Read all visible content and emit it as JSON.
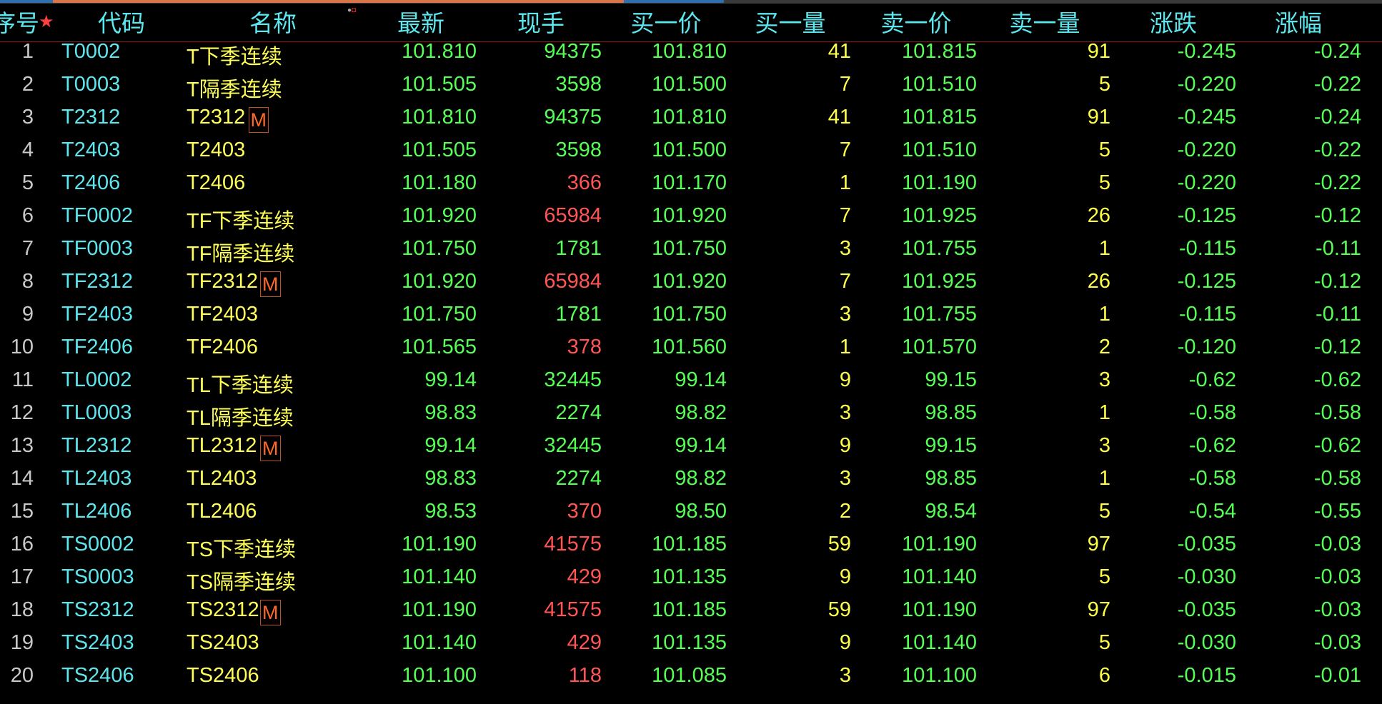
{
  "colors": {
    "header": "#5ce6ee",
    "code": "#5ce6ee",
    "name": "#ffff55",
    "up_down": "#55ff55",
    "volume_yellow": "#ffff44",
    "volume_red": "#ff5555",
    "badge": "#ff6a2a"
  },
  "header": {
    "index": "序号",
    "code": "代码",
    "name": "名称",
    "latest": "最新",
    "volume": "现手",
    "bid": "买一价",
    "bid_vol": "买一量",
    "ask": "卖一价",
    "ask_vol": "卖一量",
    "change": "涨跌",
    "pct": "涨幅"
  },
  "rows": [
    {
      "i": "1",
      "code": "T0002",
      "name": "T下季连续",
      "m": false,
      "latest": "101.810",
      "vol": "94375",
      "vc": "g",
      "bid": "101.810",
      "bv": "41",
      "ask": "101.815",
      "av": "91",
      "chg": "-0.245",
      "pct": "-0.24"
    },
    {
      "i": "2",
      "code": "T0003",
      "name": "T隔季连续",
      "m": false,
      "latest": "101.505",
      "vol": "3598",
      "vc": "g",
      "bid": "101.500",
      "bv": "7",
      "ask": "101.510",
      "av": "5",
      "chg": "-0.220",
      "pct": "-0.22"
    },
    {
      "i": "3",
      "code": "T2312",
      "name": "T2312",
      "m": true,
      "latest": "101.810",
      "vol": "94375",
      "vc": "g",
      "bid": "101.810",
      "bv": "41",
      "ask": "101.815",
      "av": "91",
      "chg": "-0.245",
      "pct": "-0.24"
    },
    {
      "i": "4",
      "code": "T2403",
      "name": "T2403",
      "m": false,
      "latest": "101.505",
      "vol": "3598",
      "vc": "g",
      "bid": "101.500",
      "bv": "7",
      "ask": "101.510",
      "av": "5",
      "chg": "-0.220",
      "pct": "-0.22"
    },
    {
      "i": "5",
      "code": "T2406",
      "name": "T2406",
      "m": false,
      "latest": "101.180",
      "vol": "366",
      "vc": "red",
      "bid": "101.170",
      "bv": "1",
      "ask": "101.190",
      "av": "5",
      "chg": "-0.220",
      "pct": "-0.22"
    },
    {
      "i": "6",
      "code": "TF0002",
      "name": "TF下季连续",
      "m": false,
      "latest": "101.920",
      "vol": "65984",
      "vc": "red",
      "bid": "101.920",
      "bv": "7",
      "ask": "101.925",
      "av": "26",
      "chg": "-0.125",
      "pct": "-0.12"
    },
    {
      "i": "7",
      "code": "TF0003",
      "name": "TF隔季连续",
      "m": false,
      "latest": "101.750",
      "vol": "1781",
      "vc": "g",
      "bid": "101.750",
      "bv": "3",
      "ask": "101.755",
      "av": "1",
      "chg": "-0.115",
      "pct": "-0.11"
    },
    {
      "i": "8",
      "code": "TF2312",
      "name": "TF2312",
      "m": true,
      "latest": "101.920",
      "vol": "65984",
      "vc": "red",
      "bid": "101.920",
      "bv": "7",
      "ask": "101.925",
      "av": "26",
      "chg": "-0.125",
      "pct": "-0.12"
    },
    {
      "i": "9",
      "code": "TF2403",
      "name": "TF2403",
      "m": false,
      "latest": "101.750",
      "vol": "1781",
      "vc": "g",
      "bid": "101.750",
      "bv": "3",
      "ask": "101.755",
      "av": "1",
      "chg": "-0.115",
      "pct": "-0.11"
    },
    {
      "i": "10",
      "code": "TF2406",
      "name": "TF2406",
      "m": false,
      "latest": "101.565",
      "vol": "378",
      "vc": "red",
      "bid": "101.560",
      "bv": "1",
      "ask": "101.570",
      "av": "2",
      "chg": "-0.120",
      "pct": "-0.12"
    },
    {
      "i": "11",
      "code": "TL0002",
      "name": "TL下季连续",
      "m": false,
      "latest": "99.14",
      "vol": "32445",
      "vc": "g",
      "bid": "99.14",
      "bv": "9",
      "ask": "99.15",
      "av": "3",
      "chg": "-0.62",
      "pct": "-0.62"
    },
    {
      "i": "12",
      "code": "TL0003",
      "name": "TL隔季连续",
      "m": false,
      "latest": "98.83",
      "vol": "2274",
      "vc": "g",
      "bid": "98.82",
      "bv": "3",
      "ask": "98.85",
      "av": "1",
      "chg": "-0.58",
      "pct": "-0.58"
    },
    {
      "i": "13",
      "code": "TL2312",
      "name": "TL2312",
      "m": true,
      "latest": "99.14",
      "vol": "32445",
      "vc": "g",
      "bid": "99.14",
      "bv": "9",
      "ask": "99.15",
      "av": "3",
      "chg": "-0.62",
      "pct": "-0.62"
    },
    {
      "i": "14",
      "code": "TL2403",
      "name": "TL2403",
      "m": false,
      "latest": "98.83",
      "vol": "2274",
      "vc": "g",
      "bid": "98.82",
      "bv": "3",
      "ask": "98.85",
      "av": "1",
      "chg": "-0.58",
      "pct": "-0.58"
    },
    {
      "i": "15",
      "code": "TL2406",
      "name": "TL2406",
      "m": false,
      "latest": "98.53",
      "vol": "370",
      "vc": "red",
      "bid": "98.50",
      "bv": "2",
      "ask": "98.54",
      "av": "5",
      "chg": "-0.54",
      "pct": "-0.55"
    },
    {
      "i": "16",
      "code": "TS0002",
      "name": "TS下季连续",
      "m": false,
      "latest": "101.190",
      "vol": "41575",
      "vc": "red",
      "bid": "101.185",
      "bv": "59",
      "ask": "101.190",
      "av": "97",
      "chg": "-0.035",
      "pct": "-0.03"
    },
    {
      "i": "17",
      "code": "TS0003",
      "name": "TS隔季连续",
      "m": false,
      "latest": "101.140",
      "vol": "429",
      "vc": "red",
      "bid": "101.135",
      "bv": "9",
      "ask": "101.140",
      "av": "5",
      "chg": "-0.030",
      "pct": "-0.03"
    },
    {
      "i": "18",
      "code": "TS2312",
      "name": "TS2312",
      "m": true,
      "latest": "101.190",
      "vol": "41575",
      "vc": "red",
      "bid": "101.185",
      "bv": "59",
      "ask": "101.190",
      "av": "97",
      "chg": "-0.035",
      "pct": "-0.03"
    },
    {
      "i": "19",
      "code": "TS2403",
      "name": "TS2403",
      "m": false,
      "latest": "101.140",
      "vol": "429",
      "vc": "red",
      "bid": "101.135",
      "bv": "9",
      "ask": "101.140",
      "av": "5",
      "chg": "-0.030",
      "pct": "-0.03"
    },
    {
      "i": "20",
      "code": "TS2406",
      "name": "TS2406",
      "m": false,
      "latest": "101.100",
      "vol": "118",
      "vc": "red",
      "bid": "101.085",
      "bv": "3",
      "ask": "101.100",
      "av": "6",
      "chg": "-0.015",
      "pct": "-0.01"
    }
  ],
  "badge_label": "M"
}
